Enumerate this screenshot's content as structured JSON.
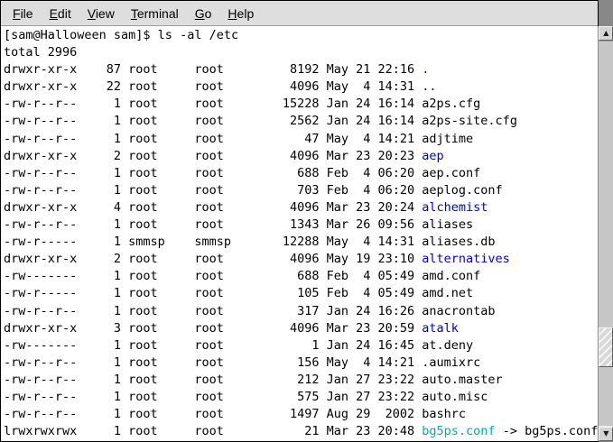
{
  "window": {
    "menu": {
      "items": [
        {
          "label": "File"
        },
        {
          "label": "Edit"
        },
        {
          "label": "View"
        },
        {
          "label": "Terminal"
        },
        {
          "label": "Go"
        },
        {
          "label": "Help"
        }
      ]
    },
    "scrollbar": {
      "up_arrow_icon": "▲",
      "down_arrow_icon": "▼"
    }
  },
  "terminal": {
    "prompt_line": "[sam@Halloween sam]$ ls -al /etc",
    "total_line": "total 2996",
    "colors": {
      "text": "#000000",
      "background": "#FFFFFF",
      "directory": "#0000CD",
      "symlink": "#00ACAC"
    },
    "listing": [
      {
        "perms": "drwxr-xr-x",
        "links": 87,
        "owner": "root",
        "group": "root",
        "size": 8192,
        "date": "May 21 22:16",
        "name": ".",
        "type": "dir"
      },
      {
        "perms": "drwxr-xr-x",
        "links": 22,
        "owner": "root",
        "group": "root",
        "size": 4096,
        "date": "May  4 14:31",
        "name": "..",
        "type": "dir"
      },
      {
        "perms": "-rw-r--r--",
        "links": 1,
        "owner": "root",
        "group": "root",
        "size": 15228,
        "date": "Jan 24 16:14",
        "name": "a2ps.cfg",
        "type": "file"
      },
      {
        "perms": "-rw-r--r--",
        "links": 1,
        "owner": "root",
        "group": "root",
        "size": 2562,
        "date": "Jan 24 16:14",
        "name": "a2ps-site.cfg",
        "type": "file"
      },
      {
        "perms": "-rw-r--r--",
        "links": 1,
        "owner": "root",
        "group": "root",
        "size": 47,
        "date": "May  4 14:21",
        "name": "adjtime",
        "type": "file"
      },
      {
        "perms": "drwxr-xr-x",
        "links": 2,
        "owner": "root",
        "group": "root",
        "size": 4096,
        "date": "Mar 23 20:23",
        "name": "aep",
        "type": "dir"
      },
      {
        "perms": "-rw-r--r--",
        "links": 1,
        "owner": "root",
        "group": "root",
        "size": 688,
        "date": "Feb  4 06:20",
        "name": "aep.conf",
        "type": "file"
      },
      {
        "perms": "-rw-r--r--",
        "links": 1,
        "owner": "root",
        "group": "root",
        "size": 703,
        "date": "Feb  4 06:20",
        "name": "aeplog.conf",
        "type": "file"
      },
      {
        "perms": "drwxr-xr-x",
        "links": 4,
        "owner": "root",
        "group": "root",
        "size": 4096,
        "date": "Mar 23 20:24",
        "name": "alchemist",
        "type": "dir"
      },
      {
        "perms": "-rw-r--r--",
        "links": 1,
        "owner": "root",
        "group": "root",
        "size": 1343,
        "date": "Mar 26 09:56",
        "name": "aliases",
        "type": "file"
      },
      {
        "perms": "-rw-r-----",
        "links": 1,
        "owner": "smmsp",
        "group": "smmsp",
        "size": 12288,
        "date": "May  4 14:31",
        "name": "aliases.db",
        "type": "file"
      },
      {
        "perms": "drwxr-xr-x",
        "links": 2,
        "owner": "root",
        "group": "root",
        "size": 4096,
        "date": "May 19 23:10",
        "name": "alternatives",
        "type": "dir"
      },
      {
        "perms": "-rw-------",
        "links": 1,
        "owner": "root",
        "group": "root",
        "size": 688,
        "date": "Feb  4 05:49",
        "name": "amd.conf",
        "type": "file"
      },
      {
        "perms": "-rw-r-----",
        "links": 1,
        "owner": "root",
        "group": "root",
        "size": 105,
        "date": "Feb  4 05:49",
        "name": "amd.net",
        "type": "file"
      },
      {
        "perms": "-rw-r--r--",
        "links": 1,
        "owner": "root",
        "group": "root",
        "size": 317,
        "date": "Jan 24 16:26",
        "name": "anacrontab",
        "type": "file"
      },
      {
        "perms": "drwxr-xr-x",
        "links": 3,
        "owner": "root",
        "group": "root",
        "size": 4096,
        "date": "Mar 23 20:59",
        "name": "atalk",
        "type": "dir"
      },
      {
        "perms": "-rw-------",
        "links": 1,
        "owner": "root",
        "group": "root",
        "size": 1,
        "date": "Jan 24 16:45",
        "name": "at.deny",
        "type": "file"
      },
      {
        "perms": "-rw-r--r--",
        "links": 1,
        "owner": "root",
        "group": "root",
        "size": 156,
        "date": "May  4 14:21",
        "name": ".aumixrc",
        "type": "file"
      },
      {
        "perms": "-rw-r--r--",
        "links": 1,
        "owner": "root",
        "group": "root",
        "size": 212,
        "date": "Jan 27 23:22",
        "name": "auto.master",
        "type": "file"
      },
      {
        "perms": "-rw-r--r--",
        "links": 1,
        "owner": "root",
        "group": "root",
        "size": 575,
        "date": "Jan 27 23:22",
        "name": "auto.misc",
        "type": "file"
      },
      {
        "perms": "-rw-r--r--",
        "links": 1,
        "owner": "root",
        "group": "root",
        "size": 1497,
        "date": "Aug 29  2002",
        "name": "bashrc",
        "type": "file"
      },
      {
        "perms": "lrwxrwxrwx",
        "links": 1,
        "owner": "root",
        "group": "root",
        "size": 21,
        "date": "Mar 23 20:48",
        "name": "bg5ps.conf",
        "type": "link",
        "target": "bg5ps.conf"
      }
    ]
  }
}
